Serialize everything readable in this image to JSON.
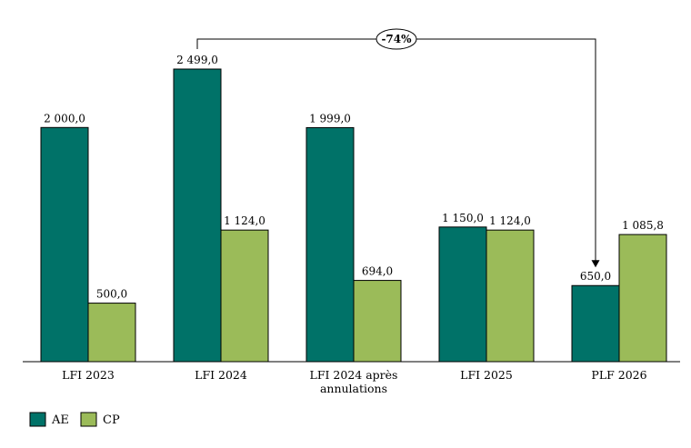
{
  "chart_data": {
    "type": "bar",
    "categories": [
      [
        "LFI 2023"
      ],
      [
        "LFI 2024"
      ],
      [
        "LFI 2024 après",
        "annulations"
      ],
      [
        "LFI 2025"
      ],
      [
        "PLF 2026"
      ]
    ],
    "series": [
      {
        "name": "AE",
        "color": "#007268",
        "values": [
          2000.0,
          2499.0,
          1999.0,
          1150.0,
          650.0
        ],
        "labels": [
          "2 000,0",
          "2 499,0",
          "1 999,0",
          "1 150,0",
          "650,0"
        ]
      },
      {
        "name": "CP",
        "color": "#9bbb59",
        "values": [
          500.0,
          1124.0,
          694.0,
          1124.0,
          1085.8
        ],
        "labels": [
          "500,0",
          "1 124,0",
          "694,0",
          "1 124,0",
          "1 085,8"
        ]
      }
    ],
    "ylim": [
      0,
      2500
    ],
    "grid": false,
    "legend_position": "bottom-left",
    "annotation": {
      "text": "-74%",
      "from_category": 1,
      "to_category": 4,
      "series": "AE"
    }
  }
}
